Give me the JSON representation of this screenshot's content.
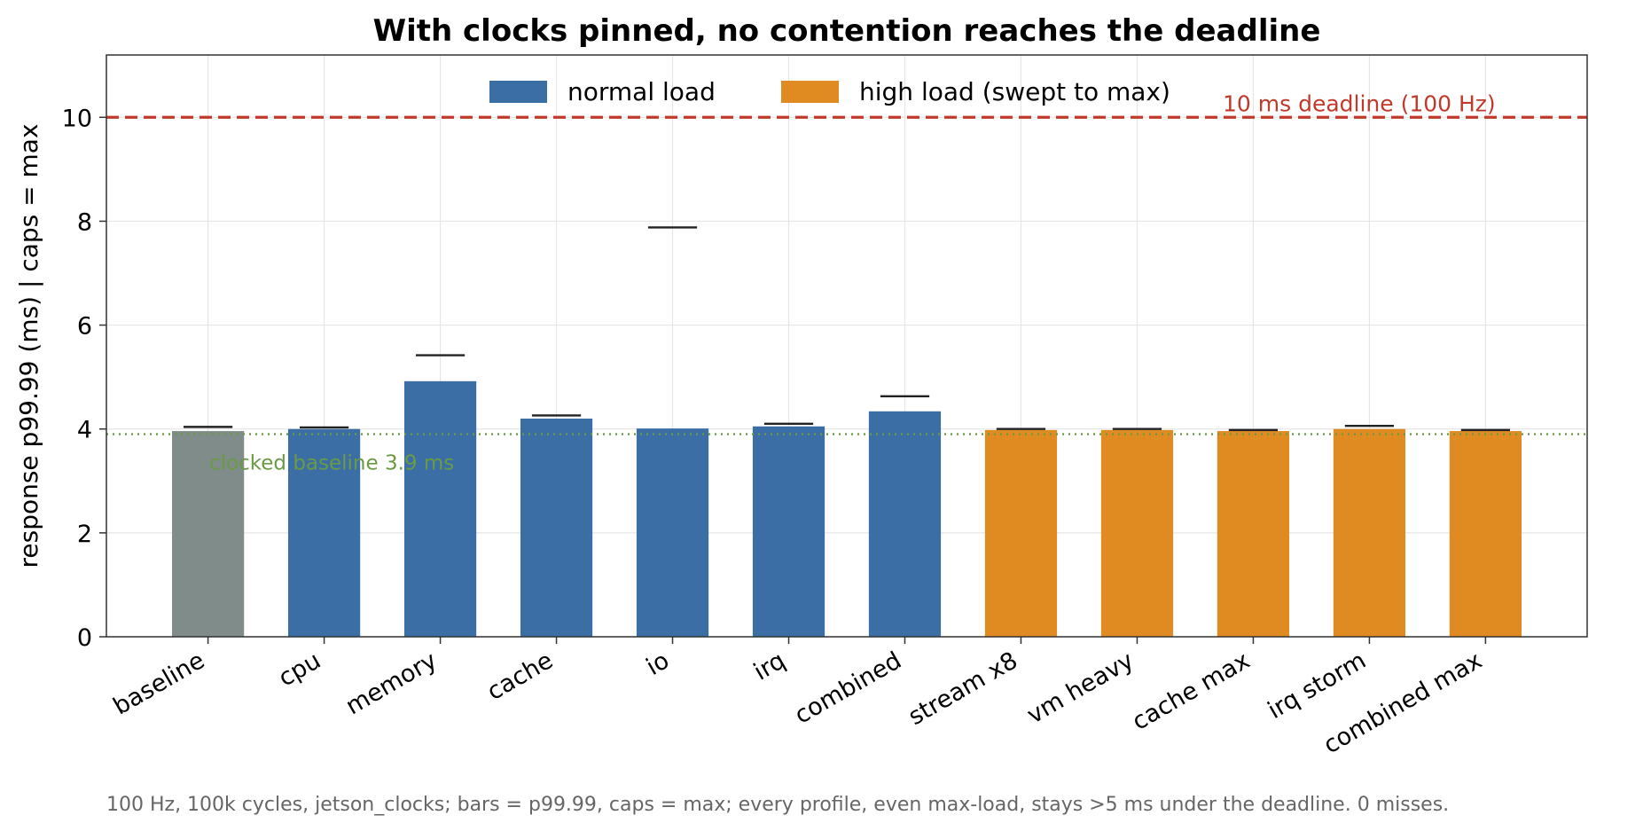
{
  "chart_data": {
    "type": "bar",
    "title": "With clocks pinned, no contention reaches the deadline",
    "ylabel": "response p99.99 (ms)   |   caps = max",
    "xlabel": "",
    "ylim": [
      0,
      11.2
    ],
    "yticks": [
      0,
      2,
      4,
      6,
      8,
      10
    ],
    "grid": true,
    "legend_placement": "top-center",
    "categories": [
      "baseline",
      "cpu",
      "memory",
      "cache",
      "io",
      "irq",
      "combined",
      "stream x8",
      "vm heavy",
      "cache max",
      "irq storm",
      "combined max"
    ],
    "groups": [
      "baseline",
      "normal",
      "normal",
      "normal",
      "normal",
      "normal",
      "normal",
      "high",
      "high",
      "high",
      "high",
      "high"
    ],
    "series": [
      {
        "name": "p99.99",
        "values": [
          3.96,
          4.0,
          4.92,
          4.2,
          4.01,
          4.05,
          4.34,
          3.98,
          3.98,
          3.96,
          4.0,
          3.96
        ]
      },
      {
        "name": "max",
        "values": [
          4.04,
          4.03,
          5.42,
          4.26,
          7.88,
          4.1,
          4.63,
          4.0,
          4.0,
          3.98,
          4.06,
          3.98
        ]
      }
    ],
    "legend": [
      {
        "label": "normal load",
        "group": "normal"
      },
      {
        "label": "high load (swept to max)",
        "group": "high"
      }
    ],
    "reference_lines": [
      {
        "value": 10,
        "label": "10 ms deadline (100 Hz)",
        "style": "dashed",
        "color": "#c0392b"
      },
      {
        "value": 3.9,
        "label": "clocked baseline 3.9 ms",
        "style": "dotted",
        "color": "#6a9a45"
      }
    ],
    "colors": {
      "baseline": "#7f8c8a",
      "normal": "#3a6ea5",
      "high": "#e08a22",
      "cap": "#222222",
      "grid": "#e6e6e6"
    },
    "footnote": "100 Hz, 100k cycles, jetson_clocks; bars = p99.99, caps = max; every profile, even max-load, stays >5 ms under the deadline. 0 misses."
  }
}
